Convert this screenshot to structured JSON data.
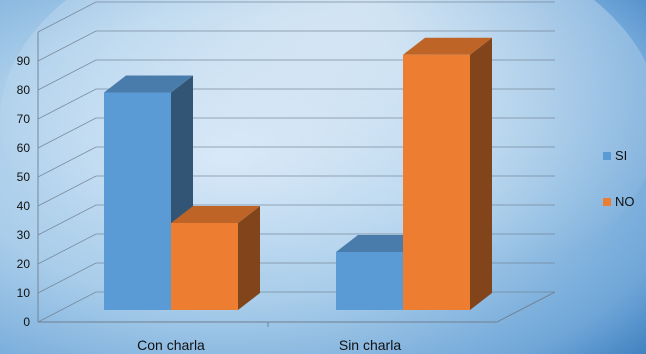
{
  "chart_data": {
    "type": "bar",
    "style": "3d-clustered-column",
    "categories": [
      "Con charla",
      "Sin charla"
    ],
    "series": [
      {
        "name": "SI",
        "values": [
          75,
          20
        ],
        "color": "#5B9BD5"
      },
      {
        "name": "NO",
        "values": [
          30,
          88
        ],
        "color": "#ED7D31"
      }
    ],
    "ylim": [
      0,
      100
    ],
    "y_ticks": [
      0,
      10,
      20,
      30,
      40,
      50,
      60,
      70,
      80,
      90
    ],
    "title": "",
    "xlabel": "",
    "ylabel": "",
    "legend_position": "right",
    "grid": true
  }
}
